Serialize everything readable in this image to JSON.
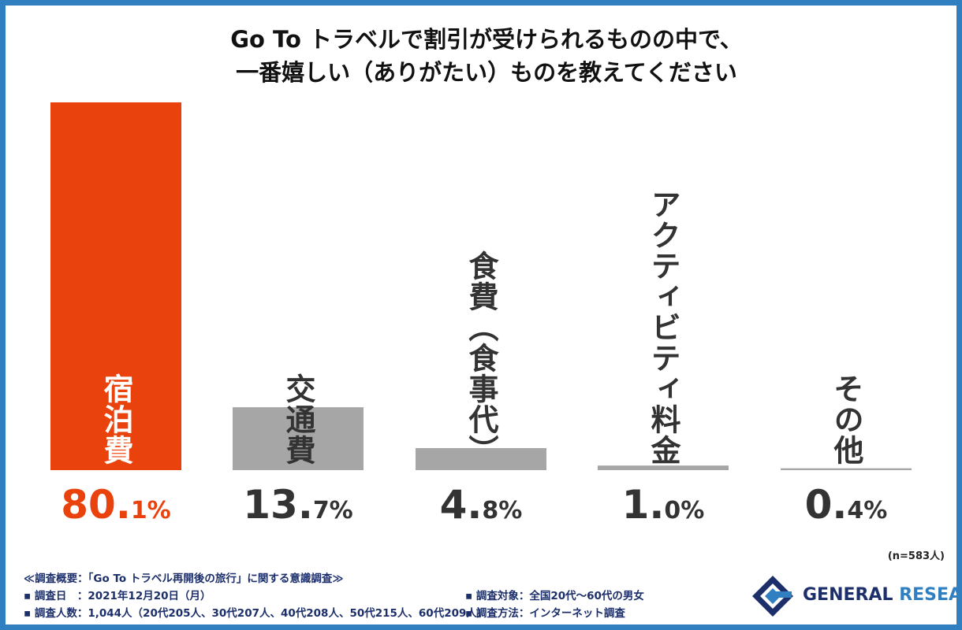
{
  "title_lines": [
    "Go To トラベルで割引が受けられるものの中で、",
    "一番嬉しい（ありがたい）ものを教えてください"
  ],
  "colors": {
    "frame": "#2f7fc1",
    "highlight": "#e9420d",
    "bar": "#a6a6a6",
    "text_dark": "#333333",
    "notes": "#1c2f6b",
    "logo_dark": "#1c2f6b",
    "logo_blue": "#2f7fc1"
  },
  "chart_data": {
    "type": "bar",
    "categories": [
      "宿泊費",
      "交通費",
      "食費（食事代）",
      "アクティビティ料金",
      "その他"
    ],
    "values": [
      80.1,
      13.7,
      4.8,
      1.0,
      0.4
    ],
    "value_labels": [
      {
        "int": "80.",
        "dec": "1%"
      },
      {
        "int": "13.",
        "dec": "7%"
      },
      {
        "int": "4.",
        "dec": "8%"
      },
      {
        "int": "1.",
        "dec": "0%"
      },
      {
        "int": "0.",
        "dec": "4%"
      }
    ],
    "highlight_index": 0,
    "ylim": [
      0,
      80.1
    ],
    "grid": false,
    "legend": "none"
  },
  "sample_size": "(n=583人)",
  "survey": {
    "heading": "≪調査概要：「Go To トラベル再開後の旅行」に関する意識調査≫",
    "date": "▪ 調査日　：2021年12月20日（月）",
    "respondents": "▪ 調査人数：1,044人（20代205人、30代207人、40代208人、50代215人、60代209人）",
    "target": "▪ 調査対象：全国20代〜60代の男女",
    "method": "▪ 調査方法：インターネット調査"
  },
  "logo": {
    "part1": "GENERAL",
    "part2": "RESEARCH",
    "icon": "general-research-logo-icon"
  }
}
